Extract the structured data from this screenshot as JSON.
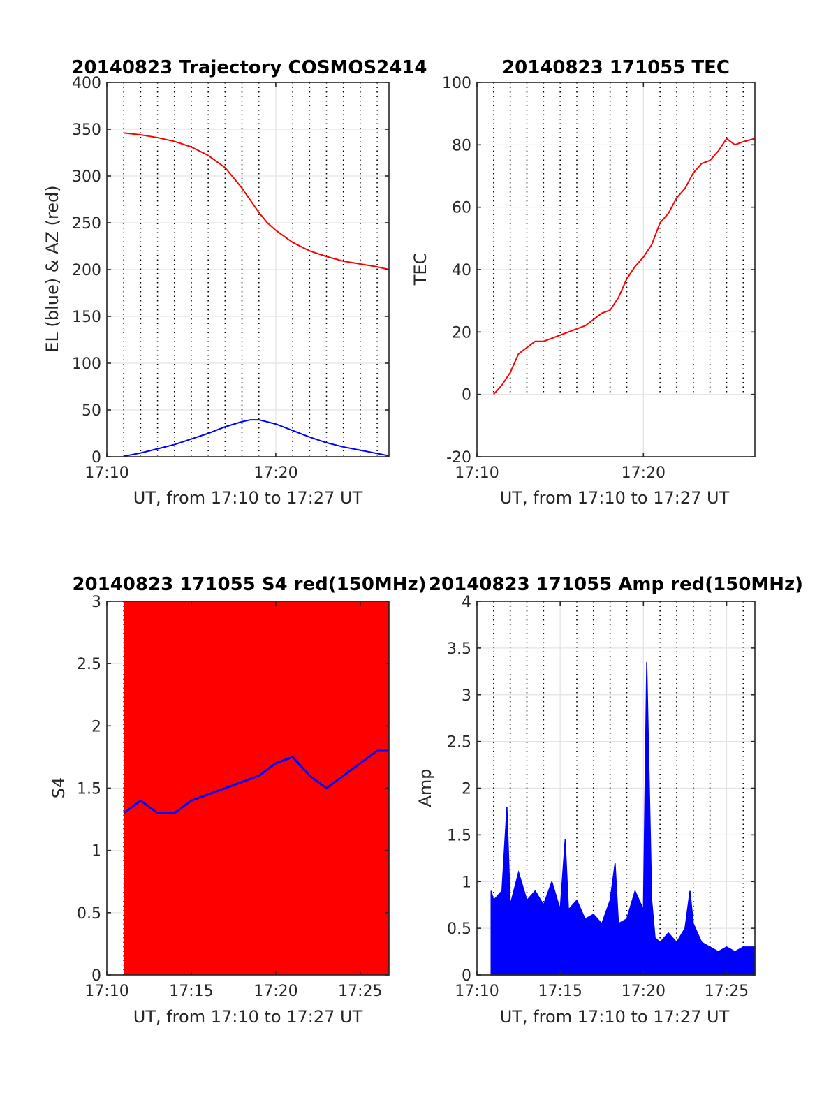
{
  "figure": {
    "background": "#ffffff"
  },
  "chart_data": [
    {
      "id": "traj",
      "type": "line",
      "title": "20140823 Trajectory COSMOS2414",
      "xlabel": "UT, from 17:10 to 17:27 UT",
      "ylabel": "EL (blue) & AZ (red)",
      "xlim": [
        0,
        16.7
      ],
      "ylim": [
        0,
        400
      ],
      "x_ticks": [
        {
          "v": 0,
          "label": "17:10"
        },
        {
          "v": 10,
          "label": "17:20"
        }
      ],
      "y_ticks": [
        {
          "v": 0,
          "label": "0"
        },
        {
          "v": 50,
          "label": "50"
        },
        {
          "v": 100,
          "label": "100"
        },
        {
          "v": 150,
          "label": "150"
        },
        {
          "v": 200,
          "label": "200"
        },
        {
          "v": 250,
          "label": "250"
        },
        {
          "v": 300,
          "label": "300"
        },
        {
          "v": 350,
          "label": "350"
        },
        {
          "v": 400,
          "label": "400"
        }
      ],
      "dotted_x_lines": [
        1,
        2,
        3,
        4,
        5,
        6,
        7,
        8,
        9,
        11,
        12,
        13,
        14,
        15,
        16
      ],
      "grid": true,
      "series": [
        {
          "color": "#ff0000",
          "x": [
            1.0,
            2.0,
            3.0,
            4.0,
            5.0,
            6.0,
            7.0,
            8.0,
            8.5,
            9.0,
            9.5,
            10.0,
            11.0,
            12.0,
            13.0,
            14.0,
            15.0,
            16.0,
            16.7
          ],
          "y": [
            346,
            344,
            341,
            337,
            331,
            322,
            309,
            287,
            274,
            261,
            250,
            242,
            229,
            220,
            214,
            209,
            206,
            203,
            200
          ]
        },
        {
          "color": "#0000ff",
          "x": [
            1.0,
            2.0,
            3.0,
            4.0,
            5.0,
            6.0,
            7.0,
            8.0,
            8.5,
            9.0,
            10.0,
            11.0,
            12.0,
            13.0,
            14.0,
            15.0,
            16.0,
            16.7
          ],
          "y": [
            0.5,
            4,
            8.5,
            13,
            19,
            25,
            32,
            37.5,
            39.5,
            39.5,
            35,
            28,
            21,
            15,
            10.5,
            7,
            3.5,
            1
          ]
        }
      ]
    },
    {
      "id": "tec",
      "type": "line",
      "title": "20140823 171055 TEC",
      "xlabel": "UT, from 17:10 to 17:27 UT",
      "ylabel": "TEC",
      "xlim": [
        0,
        16.7
      ],
      "ylim": [
        -20,
        100
      ],
      "x_ticks": [
        {
          "v": 0,
          "label": "17:10"
        },
        {
          "v": 10,
          "label": "17:20"
        }
      ],
      "y_ticks": [
        {
          "v": -20,
          "label": "-20"
        },
        {
          "v": 0,
          "label": "0"
        },
        {
          "v": 20,
          "label": "20"
        },
        {
          "v": 40,
          "label": "40"
        },
        {
          "v": 60,
          "label": "60"
        },
        {
          "v": 80,
          "label": "80"
        },
        {
          "v": 100,
          "label": "100"
        }
      ],
      "dotted_x_lines": [
        1,
        2,
        3,
        4,
        5,
        6,
        7,
        8,
        9,
        11,
        12,
        13,
        14,
        15,
        16
      ],
      "grid": true,
      "series": [
        {
          "color": "#ff0000",
          "x": [
            1.0,
            1.5,
            2.0,
            2.5,
            3.0,
            3.5,
            4.0,
            4.5,
            5.0,
            5.5,
            6.0,
            6.5,
            7.0,
            7.5,
            8.0,
            8.5,
            9.0,
            9.5,
            10.0,
            10.5,
            11.0,
            11.5,
            12.0,
            12.5,
            13.0,
            13.5,
            14.0,
            14.5,
            15.0,
            15.5,
            16.0,
            16.7
          ],
          "y": [
            0,
            3,
            7,
            13,
            15,
            17,
            17,
            18,
            19,
            20,
            21,
            22,
            24,
            26,
            27,
            31,
            37,
            41,
            44,
            48,
            55,
            58,
            63,
            66,
            71,
            74,
            75,
            78,
            82,
            80,
            81,
            82
          ]
        }
      ]
    },
    {
      "id": "s4",
      "type": "line",
      "title": "20140823 171055 S4 red(150MHz)",
      "xlabel": "UT, from 17:10 to 17:27 UT",
      "ylabel": "S4",
      "xlim": [
        0,
        16.7
      ],
      "ylim": [
        0,
        3
      ],
      "x_ticks": [
        {
          "v": 0,
          "label": "17:10"
        },
        {
          "v": 5,
          "label": "17:15"
        },
        {
          "v": 10,
          "label": "17:20"
        },
        {
          "v": 15,
          "label": "17:25"
        }
      ],
      "y_ticks": [
        {
          "v": 0,
          "label": "0"
        },
        {
          "v": 0.5,
          "label": "0.5"
        },
        {
          "v": 1,
          "label": "1"
        },
        {
          "v": 1.5,
          "label": "1.5"
        },
        {
          "v": 2,
          "label": "2"
        },
        {
          "v": 2.5,
          "label": "2.5"
        },
        {
          "v": 3,
          "label": "3"
        }
      ],
      "dotted_x_lines": [
        1,
        2,
        3,
        4,
        6,
        7,
        8,
        9,
        11,
        12,
        13,
        14,
        16
      ],
      "grid": true,
      "series": [
        {
          "color": "#ff0000",
          "x": [
            1.0,
            2.0,
            3.0,
            4.0,
            5.0,
            6.0,
            7.0,
            8.0,
            9.0,
            10.0,
            11.0,
            12.0,
            13.0,
            14.0,
            15.0,
            16.0,
            16.7
          ],
          "y": [
            3,
            3,
            3,
            3,
            3,
            3,
            3,
            3,
            3,
            3,
            3,
            3,
            3,
            3,
            3,
            3,
            3
          ]
        },
        {
          "color": "#0000ff",
          "x": [
            1.0,
            2.0,
            3.0,
            4.0,
            5.0,
            6.0,
            7.0,
            8.0,
            9.0,
            10.0,
            11.0,
            12.0,
            13.0,
            14.0,
            15.0,
            16.0,
            16.7
          ],
          "y": [
            1.3,
            1.4,
            1.3,
            1.3,
            1.4,
            1.45,
            1.5,
            1.55,
            1.6,
            1.7,
            1.75,
            1.6,
            1.5,
            1.6,
            1.7,
            1.8,
            1.8
          ]
        }
      ]
    },
    {
      "id": "amp",
      "type": "line",
      "title": "20140823 171055 Amp red(150MHz)",
      "xlabel": "UT, from 17:10 to 17:27 UT",
      "ylabel": "Amp",
      "xlim": [
        0,
        16.7
      ],
      "ylim": [
        0,
        4
      ],
      "x_ticks": [
        {
          "v": 0,
          "label": "17:10"
        },
        {
          "v": 5,
          "label": "17:15"
        },
        {
          "v": 10,
          "label": "17:20"
        },
        {
          "v": 15,
          "label": "17:25"
        }
      ],
      "y_ticks": [
        {
          "v": 0,
          "label": "0"
        },
        {
          "v": 0.5,
          "label": "0.5"
        },
        {
          "v": 1,
          "label": "1"
        },
        {
          "v": 1.5,
          "label": "1.5"
        },
        {
          "v": 2,
          "label": "2"
        },
        {
          "v": 2.5,
          "label": "2.5"
        },
        {
          "v": 3,
          "label": "3"
        },
        {
          "v": 3.5,
          "label": "3.5"
        },
        {
          "v": 4,
          "label": "4"
        }
      ],
      "dotted_x_lines": [
        1,
        2,
        3,
        4,
        6,
        7,
        8,
        9,
        11,
        12,
        13,
        14,
        16
      ],
      "grid": true,
      "series": [
        {
          "color": "#0000ff",
          "x": [
            0.85,
            1.0,
            1.5,
            1.8,
            2.0,
            2.5,
            3.0,
            3.5,
            4.0,
            4.5,
            5.0,
            5.3,
            5.5,
            6.0,
            6.5,
            7.0,
            7.5,
            8.0,
            8.3,
            8.5,
            9.0,
            9.5,
            10.0,
            10.2,
            10.3,
            10.5,
            10.7,
            11.0,
            11.5,
            12.0,
            12.5,
            12.8,
            13.0,
            13.5,
            14.0,
            14.5,
            15.0,
            15.5,
            16.0,
            16.7
          ],
          "y": [
            0.9,
            0.8,
            0.9,
            1.8,
            0.75,
            1.1,
            0.8,
            0.9,
            0.75,
            1.0,
            0.7,
            1.45,
            0.7,
            0.8,
            0.6,
            0.65,
            0.55,
            0.8,
            1.2,
            0.55,
            0.6,
            0.9,
            0.7,
            3.35,
            2.5,
            0.8,
            0.4,
            0.35,
            0.45,
            0.35,
            0.5,
            0.9,
            0.55,
            0.35,
            0.3,
            0.25,
            0.3,
            0.25,
            0.3,
            0.3
          ]
        }
      ]
    }
  ]
}
